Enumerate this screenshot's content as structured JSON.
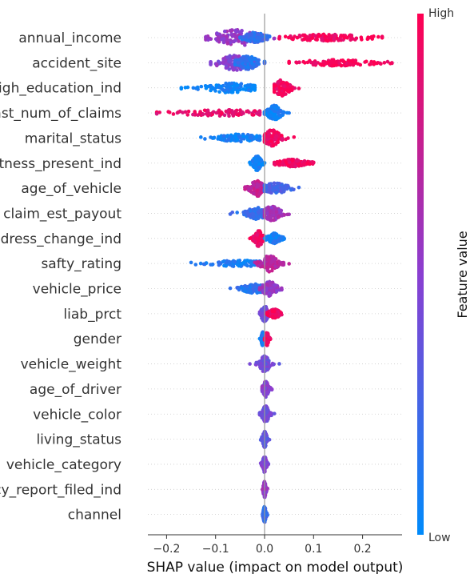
{
  "chart_data": {
    "type": "scatter",
    "subtype": "shap-beeswarm",
    "xlabel": "SHAP value (impact on model output)",
    "xlim": [
      -0.24,
      0.28
    ],
    "xticks": [
      {
        "value": -0.2,
        "label": "−0.2"
      },
      {
        "value": -0.1,
        "label": "−0.1"
      },
      {
        "value": 0.0,
        "label": "0.0"
      },
      {
        "value": 0.1,
        "label": "0.1"
      },
      {
        "value": 0.2,
        "label": "0.2"
      }
    ],
    "colorbar": {
      "title": "Feature value",
      "high_label": "High",
      "low_label": "Low",
      "high_color": "#ff0052",
      "low_color": "#008bfb"
    },
    "grid": "horizontal dotted",
    "features": [
      {
        "name": "annual_income",
        "clusters": [
          {
            "min": -0.12,
            "max": 0.02,
            "center": -0.055,
            "spread": 0.035,
            "width": 1.0,
            "feat": 0.55
          },
          {
            "min": -0.05,
            "max": 0.01,
            "center": -0.02,
            "spread": 0.015,
            "width": 0.6,
            "feat": 0.2
          },
          {
            "min": 0.03,
            "max": 0.24,
            "center": 0.13,
            "spread": 0.05,
            "width": 0.35,
            "feat": 0.95
          }
        ]
      },
      {
        "name": "accident_site",
        "clusters": [
          {
            "min": -0.11,
            "max": -0.02,
            "center": -0.06,
            "spread": 0.025,
            "width": 0.9,
            "feat": 0.5
          },
          {
            "min": -0.06,
            "max": 0.0,
            "center": -0.035,
            "spread": 0.015,
            "width": 0.8,
            "feat": 0.15
          },
          {
            "min": 0.05,
            "max": 0.26,
            "center": 0.15,
            "spread": 0.05,
            "width": 0.3,
            "feat": 0.97
          }
        ]
      },
      {
        "name": "high_education_ind",
        "clusters": [
          {
            "min": -0.17,
            "max": -0.02,
            "center": -0.07,
            "spread": 0.035,
            "width": 0.55,
            "feat": 0.05
          },
          {
            "min": 0.02,
            "max": 0.07,
            "center": 0.035,
            "spread": 0.012,
            "width": 1.0,
            "feat": 0.95
          }
        ]
      },
      {
        "name": "past_num_of_claims",
        "clusters": [
          {
            "min": -0.22,
            "max": -0.01,
            "center": -0.08,
            "spread": 0.06,
            "width": 0.3,
            "feat": 0.9
          },
          {
            "min": 0.0,
            "max": 0.05,
            "center": 0.02,
            "spread": 0.01,
            "width": 0.9,
            "feat": 0.08
          }
        ]
      },
      {
        "name": "marital_status",
        "clusters": [
          {
            "min": -0.13,
            "max": -0.01,
            "center": -0.05,
            "spread": 0.03,
            "width": 0.4,
            "feat": 0.07
          },
          {
            "min": 0.0,
            "max": 0.06,
            "center": 0.015,
            "spread": 0.012,
            "width": 1.0,
            "feat": 0.93
          }
        ]
      },
      {
        "name": "witness_present_ind",
        "clusters": [
          {
            "min": -0.03,
            "max": 0.0,
            "center": -0.015,
            "spread": 0.006,
            "width": 0.9,
            "feat": 0.05
          },
          {
            "min": 0.02,
            "max": 0.1,
            "center": 0.055,
            "spread": 0.02,
            "width": 0.4,
            "feat": 0.95
          }
        ]
      },
      {
        "name": "age_of_vehicle",
        "clusters": [
          {
            "min": -0.04,
            "max": 0.0,
            "center": -0.015,
            "spread": 0.01,
            "width": 1.0,
            "feat": 0.75
          },
          {
            "min": 0.0,
            "max": 0.07,
            "center": 0.02,
            "spread": 0.02,
            "width": 0.6,
            "feat": 0.25
          }
        ]
      },
      {
        "name": "claim_est_payout",
        "clusters": [
          {
            "min": -0.07,
            "max": 0.0,
            "center": -0.015,
            "spread": 0.015,
            "width": 0.7,
            "feat": 0.2
          },
          {
            "min": 0.0,
            "max": 0.05,
            "center": 0.015,
            "spread": 0.012,
            "width": 0.9,
            "feat": 0.6
          }
        ]
      },
      {
        "name": "address_change_ind",
        "clusters": [
          {
            "min": -0.03,
            "max": 0.0,
            "center": -0.012,
            "spread": 0.006,
            "width": 1.0,
            "feat": 0.95
          },
          {
            "min": 0.0,
            "max": 0.04,
            "center": 0.02,
            "spread": 0.008,
            "width": 0.6,
            "feat": 0.07
          }
        ]
      },
      {
        "name": "safty_rating",
        "clusters": [
          {
            "min": -0.15,
            "max": -0.01,
            "center": -0.05,
            "spread": 0.04,
            "width": 0.3,
            "feat": 0.1
          },
          {
            "min": -0.02,
            "max": 0.05,
            "center": 0.01,
            "spread": 0.012,
            "width": 1.0,
            "feat": 0.7
          }
        ]
      },
      {
        "name": "vehicle_price",
        "clusters": [
          {
            "min": -0.07,
            "max": 0.0,
            "center": -0.02,
            "spread": 0.018,
            "width": 0.5,
            "feat": 0.15
          },
          {
            "min": -0.01,
            "max": 0.035,
            "center": 0.01,
            "spread": 0.01,
            "width": 0.9,
            "feat": 0.55
          }
        ]
      },
      {
        "name": "liab_prct",
        "clusters": [
          {
            "min": -0.01,
            "max": 0.01,
            "center": 0.0,
            "spread": 0.005,
            "width": 1.0,
            "feat": 0.4
          },
          {
            "min": 0.005,
            "max": 0.035,
            "center": 0.02,
            "spread": 0.008,
            "width": 0.5,
            "feat": 0.95
          }
        ]
      },
      {
        "name": "gender",
        "clusters": [
          {
            "min": -0.01,
            "max": 0.0,
            "center": -0.004,
            "spread": 0.002,
            "width": 0.8,
            "feat": 0.08
          },
          {
            "min": 0.0,
            "max": 0.012,
            "center": 0.005,
            "spread": 0.002,
            "width": 0.8,
            "feat": 0.95
          }
        ]
      },
      {
        "name": "vehicle_weight",
        "clusters": [
          {
            "min": -0.03,
            "max": 0.03,
            "center": 0.0,
            "spread": 0.007,
            "width": 1.0,
            "feat": 0.4
          }
        ]
      },
      {
        "name": "age_of_driver",
        "clusters": [
          {
            "min": -0.005,
            "max": 0.015,
            "center": 0.002,
            "spread": 0.004,
            "width": 1.0,
            "feat": 0.5
          }
        ]
      },
      {
        "name": "vehicle_color",
        "clusters": [
          {
            "min": -0.01,
            "max": 0.02,
            "center": 0.002,
            "spread": 0.005,
            "width": 1.0,
            "feat": 0.4
          }
        ]
      },
      {
        "name": "living_status",
        "clusters": [
          {
            "min": -0.008,
            "max": 0.01,
            "center": 0.0,
            "spread": 0.003,
            "width": 1.0,
            "feat": 0.35
          }
        ]
      },
      {
        "name": "vehicle_category",
        "clusters": [
          {
            "min": -0.008,
            "max": 0.008,
            "center": 0.0,
            "spread": 0.003,
            "width": 1.0,
            "feat": 0.45
          }
        ]
      },
      {
        "name": "policy_report_filed_ind",
        "clusters": [
          {
            "min": -0.004,
            "max": 0.006,
            "center": 0.0,
            "spread": 0.002,
            "width": 1.0,
            "feat": 0.55
          }
        ]
      },
      {
        "name": "channel",
        "clusters": [
          {
            "min": -0.004,
            "max": 0.006,
            "center": 0.0,
            "spread": 0.002,
            "width": 1.0,
            "feat": 0.2
          }
        ]
      }
    ]
  }
}
